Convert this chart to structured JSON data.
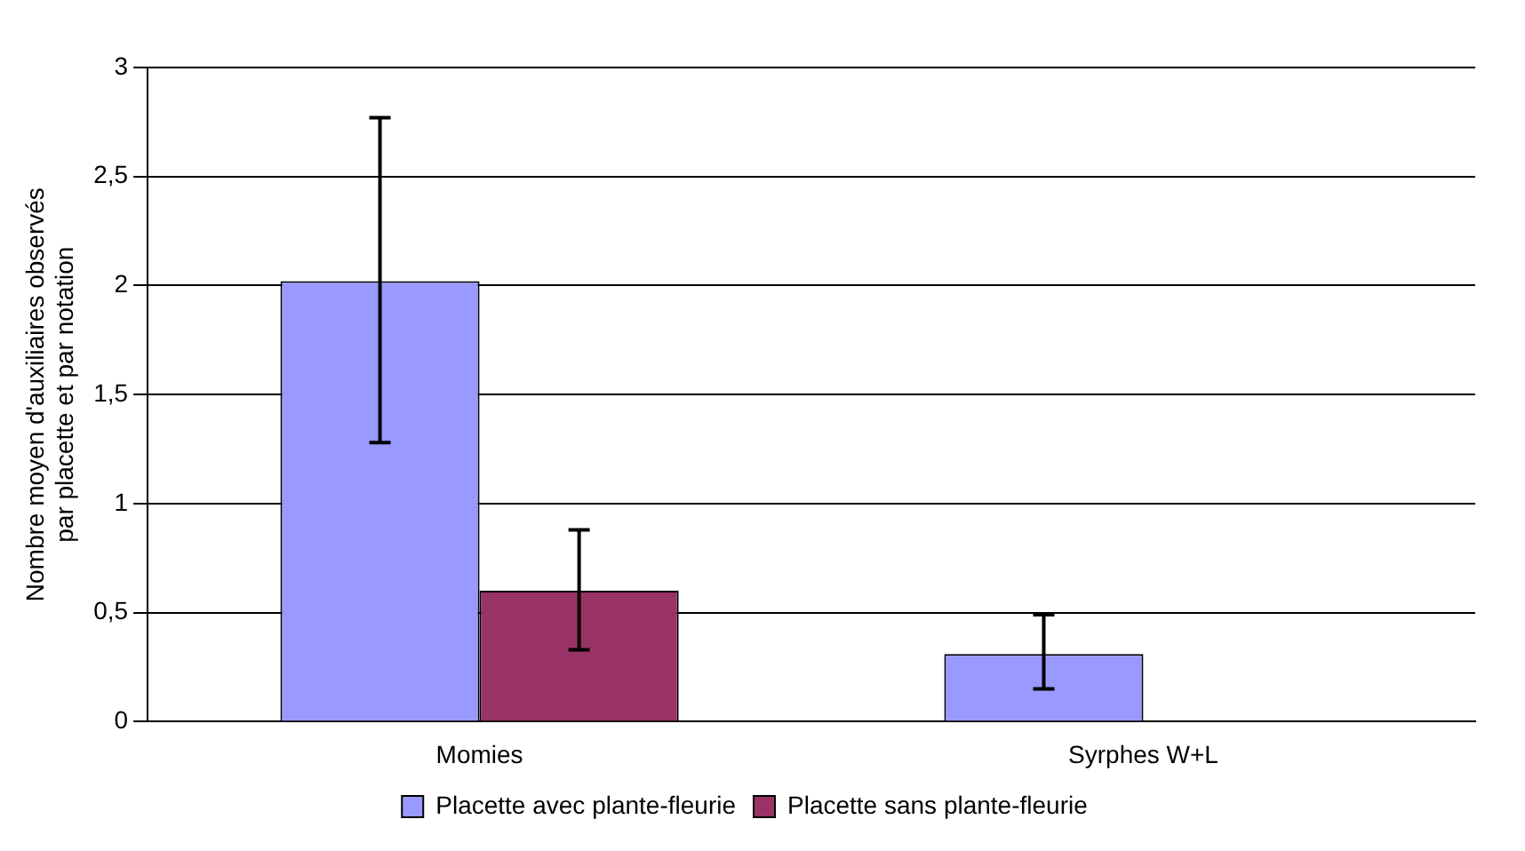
{
  "chart_data": {
    "type": "bar",
    "ylabel": "Nombre moyen d'auxiliaires observés par placette et par notation",
    "categories": [
      "Momies",
      "Syrphes W+L"
    ],
    "series": [
      {
        "name": "Placette avec plante-fleurie",
        "color": "#9999ff",
        "values": [
          2.02,
          0.31
        ],
        "errors": [
          [
            1.28,
            2.77
          ],
          [
            0.15,
            0.49
          ]
        ]
      },
      {
        "name": "Placette sans plante-fleurie",
        "color": "#993366",
        "values": [
          0.6,
          0
        ],
        "errors": [
          [
            0.33,
            0.88
          ],
          null
        ]
      }
    ],
    "ylim": [
      0,
      3
    ],
    "yticks": [
      0,
      {
        "value": 0.5,
        "label": "0,5"
      },
      1,
      {
        "value": 1.5,
        "label": "1,5"
      },
      2,
      {
        "value": 2.5,
        "label": "2,5"
      },
      3
    ],
    "grid": "y",
    "legend": "bottom"
  }
}
